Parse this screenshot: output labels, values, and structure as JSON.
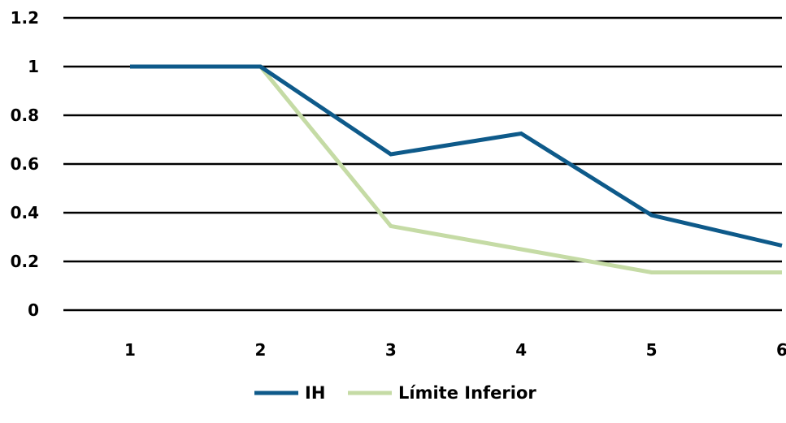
{
  "chart_data": {
    "type": "line",
    "title": "",
    "xlabel": "",
    "ylabel": "",
    "categories": [
      "1",
      "2",
      "3",
      "4",
      "5",
      "6"
    ],
    "ylim": [
      0,
      1.2
    ],
    "y_ticks": [
      "0",
      "0.2",
      "0.4",
      "0.6",
      "0.8",
      "1",
      "1.2"
    ],
    "grid": true,
    "legend_position": "bottom",
    "series": [
      {
        "name": "IH",
        "color": "#0e5a8a",
        "values": [
          1.0,
          1.0,
          0.64,
          0.725,
          0.39,
          0.265
        ]
      },
      {
        "name": "Límite Inferior",
        "color": "#c5dba5",
        "values": [
          1.0,
          1.0,
          0.345,
          0.25,
          0.155,
          0.155
        ]
      }
    ]
  }
}
